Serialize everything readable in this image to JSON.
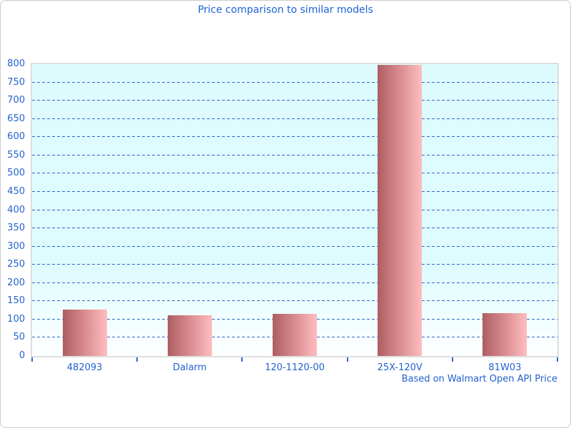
{
  "title": "Price comparison to similar models",
  "footer": "Based on Walmart Open API Price",
  "colors": {
    "title_text": "#1b63d6",
    "axis_text": "#2462cf",
    "gridline": "#3465c8",
    "tick": "#2f6acc",
    "plot_border": "#dcdede",
    "plot_bg_top": "#ddfbfd",
    "plot_bg_bottom": "#feffff",
    "bar_gradient_dark": "#ae5e62",
    "bar_gradient_light": "#ffbdc0",
    "card_border": "#cccccc"
  },
  "chart_data": {
    "type": "bar",
    "title": "Price comparison to similar models",
    "categories": [
      "482093",
      "Dalarm",
      "120-1120-00",
      "25X-120V",
      "81W03"
    ],
    "values": [
      127,
      112,
      115,
      798,
      118
    ],
    "xlabel": "",
    "ylabel": "",
    "ylim": [
      0,
      800
    ],
    "ytick_step": 50,
    "grid": true,
    "grid_style": "dashed",
    "legend": false,
    "annotation": "Based on Walmart Open API Price"
  }
}
